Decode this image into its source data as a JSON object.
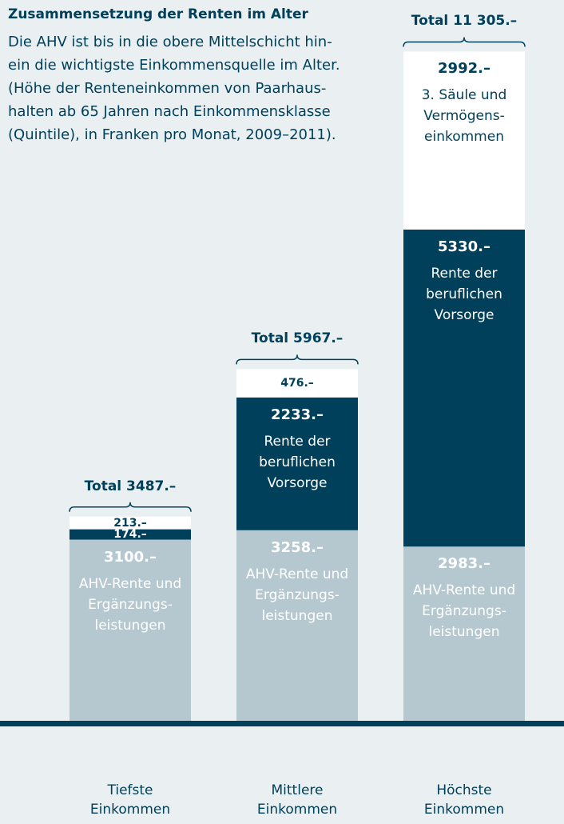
{
  "chart_data": {
    "type": "stacked_bar",
    "title": "Zusammensetzung der Renten im Alter",
    "subtitle": "Die AHV ist bis in die obere Mittelschicht hin-\nein die wichtigste Einkommensquelle im Alter.\n(Höhe der Renteneinkommen von Paarhaus-\nhalten ab 65 Jahren nach Einkommensklasse\n(Quintile), in Franken pro Monat, 2009–2011).",
    "categories": [
      "Tiefste\nEinkommen",
      "Mittlere\nEinkommen",
      "Höchste\nEinkommen"
    ],
    "series": [
      {
        "name": "AHV-Rente und\nErgänzungs-\nleistungen",
        "color": "#b5c7cf",
        "values": [
          3100,
          3258,
          2983
        ],
        "value_labels": [
          "3100.–",
          "3258.–",
          "2983.–"
        ]
      },
      {
        "name": "Rente der\nberuflichen\nVorsorge",
        "color": "#00405a",
        "values": [
          174,
          2233,
          5330
        ],
        "value_labels": [
          "174.–",
          "2233.–",
          "5330.–"
        ]
      },
      {
        "name": "3. Säule und\nVermögens-\neinkommen",
        "color": "#ffffff",
        "values": [
          213,
          476,
          2992
        ],
        "value_labels": [
          "213.–",
          "476.–",
          "2992.–"
        ]
      }
    ],
    "totals": [
      3487,
      5967,
      11305
    ],
    "total_labels": [
      "Total 3487.–",
      "Total 5967.–",
      "Total 11 305.–"
    ],
    "ylim": [
      0,
      11500
    ]
  }
}
